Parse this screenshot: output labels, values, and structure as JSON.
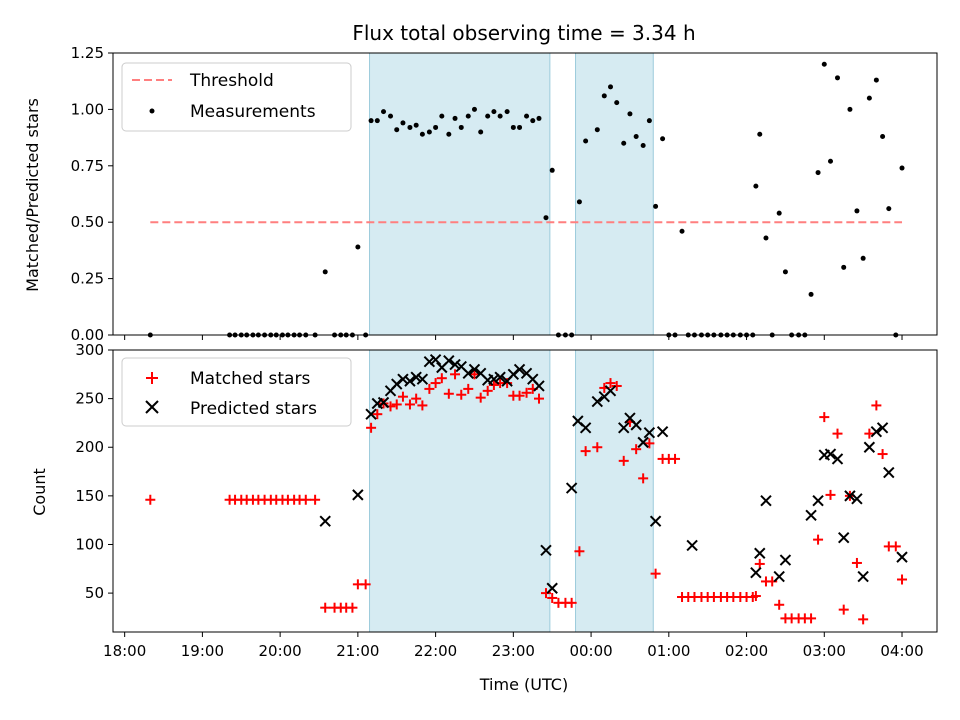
{
  "chart_data": [
    {
      "type": "scatter",
      "title": "Flux total observing time = 3.34 h",
      "xlabel": "",
      "ylabel": "Matched/Predicted stars",
      "ylim": [
        0,
        1.25
      ],
      "yticks": [
        "0.00",
        "0.25",
        "0.50",
        "0.75",
        "1.00",
        "1.25"
      ],
      "legend": "top-left",
      "shaded_regions": [
        [
          21.15,
          23.47
        ],
        [
          23.8,
          24.8
        ]
      ],
      "threshold": {
        "name": "Threshold",
        "value": 0.5,
        "x_range": [
          18.33,
          28.0
        ],
        "color": "#ff7f7f"
      },
      "measurements": {
        "name": "Measurements",
        "color": "#000000",
        "points": [
          [
            18.33,
            0
          ],
          [
            19.35,
            0
          ],
          [
            19.42,
            0
          ],
          [
            19.5,
            0
          ],
          [
            19.57,
            0
          ],
          [
            19.65,
            0
          ],
          [
            19.72,
            0
          ],
          [
            19.8,
            0
          ],
          [
            19.88,
            0
          ],
          [
            19.95,
            0
          ],
          [
            20.03,
            0
          ],
          [
            20.1,
            0
          ],
          [
            20.18,
            0
          ],
          [
            20.25,
            0
          ],
          [
            20.33,
            0
          ],
          [
            20.45,
            0
          ],
          [
            20.58,
            0.28
          ],
          [
            20.7,
            0
          ],
          [
            20.78,
            0
          ],
          [
            20.85,
            0
          ],
          [
            20.93,
            0
          ],
          [
            21.0,
            0.39
          ],
          [
            21.1,
            0
          ],
          [
            21.17,
            0.95
          ],
          [
            21.25,
            0.95
          ],
          [
            21.33,
            0.99
          ],
          [
            21.42,
            0.97
          ],
          [
            21.5,
            0.91
          ],
          [
            21.58,
            0.94
          ],
          [
            21.67,
            0.92
          ],
          [
            21.75,
            0.93
          ],
          [
            21.83,
            0.89
          ],
          [
            21.92,
            0.9
          ],
          [
            22.0,
            0.92
          ],
          [
            22.08,
            0.97
          ],
          [
            22.17,
            0.89
          ],
          [
            22.25,
            0.96
          ],
          [
            22.33,
            0.92
          ],
          [
            22.42,
            0.97
          ],
          [
            22.5,
            1.0
          ],
          [
            22.58,
            0.9
          ],
          [
            22.67,
            0.97
          ],
          [
            22.75,
            0.99
          ],
          [
            22.83,
            0.97
          ],
          [
            22.92,
            0.99
          ],
          [
            23.0,
            0.92
          ],
          [
            23.08,
            0.92
          ],
          [
            23.17,
            0.97
          ],
          [
            23.25,
            0.95
          ],
          [
            23.33,
            0.96
          ],
          [
            23.42,
            0.52
          ],
          [
            23.5,
            0.73
          ],
          [
            23.58,
            0
          ],
          [
            23.67,
            0
          ],
          [
            23.75,
            0
          ],
          [
            23.85,
            0.59
          ],
          [
            23.93,
            0.86
          ],
          [
            24.08,
            0.91
          ],
          [
            24.17,
            1.06
          ],
          [
            24.25,
            1.1
          ],
          [
            24.33,
            1.03
          ],
          [
            24.42,
            0.85
          ],
          [
            24.5,
            0.98
          ],
          [
            24.58,
            0.88
          ],
          [
            24.67,
            0.84
          ],
          [
            24.75,
            0.95
          ],
          [
            24.83,
            0.57
          ],
          [
            24.92,
            0.87
          ],
          [
            25.0,
            0
          ],
          [
            25.08,
            0
          ],
          [
            25.17,
            0.46
          ],
          [
            25.25,
            0
          ],
          [
            25.33,
            0
          ],
          [
            25.42,
            0
          ],
          [
            25.5,
            0
          ],
          [
            25.58,
            0
          ],
          [
            25.67,
            0
          ],
          [
            25.75,
            0
          ],
          [
            25.83,
            0
          ],
          [
            25.92,
            0
          ],
          [
            26.0,
            0
          ],
          [
            26.08,
            0
          ],
          [
            26.12,
            0.66
          ],
          [
            26.17,
            0.89
          ],
          [
            26.25,
            0.43
          ],
          [
            26.33,
            0
          ],
          [
            26.42,
            0.54
          ],
          [
            26.5,
            0.28
          ],
          [
            26.58,
            0
          ],
          [
            26.67,
            0
          ],
          [
            26.75,
            0
          ],
          [
            26.83,
            0.18
          ],
          [
            26.92,
            0.72
          ],
          [
            27.0,
            1.2
          ],
          [
            27.08,
            0.77
          ],
          [
            27.17,
            1.14
          ],
          [
            27.25,
            0.3
          ],
          [
            27.33,
            1.0
          ],
          [
            27.42,
            0.55
          ],
          [
            27.5,
            0.34
          ],
          [
            27.58,
            1.05
          ],
          [
            27.67,
            1.13
          ],
          [
            27.75,
            0.88
          ],
          [
            27.83,
            0.56
          ],
          [
            27.92,
            0
          ],
          [
            28.0,
            0.74
          ]
        ]
      }
    },
    {
      "type": "scatter",
      "title": "",
      "xlabel": "Time (UTC)",
      "ylabel": "Count",
      "ylim": [
        10,
        300
      ],
      "yticks": [
        "50",
        "100",
        "150",
        "200",
        "250",
        "300"
      ],
      "xticks": [
        "18:00",
        "19:00",
        "20:00",
        "21:00",
        "22:00",
        "23:00",
        "00:00",
        "01:00",
        "02:00",
        "03:00",
        "04:00"
      ],
      "legend": "top-left",
      "shaded_regions": [
        [
          21.15,
          23.47
        ],
        [
          23.8,
          24.8
        ]
      ],
      "series": [
        {
          "name": "Matched stars",
          "marker": "plus",
          "color": "#ff0000",
          "points": [
            [
              18.33,
              146
            ],
            [
              19.35,
              146
            ],
            [
              19.42,
              146
            ],
            [
              19.5,
              146
            ],
            [
              19.57,
              146
            ],
            [
              19.65,
              146
            ],
            [
              19.72,
              146
            ],
            [
              19.8,
              146
            ],
            [
              19.88,
              146
            ],
            [
              19.95,
              146
            ],
            [
              20.03,
              146
            ],
            [
              20.1,
              146
            ],
            [
              20.18,
              146
            ],
            [
              20.25,
              146
            ],
            [
              20.33,
              146
            ],
            [
              20.45,
              146
            ],
            [
              20.58,
              35
            ],
            [
              20.7,
              35
            ],
            [
              20.78,
              35
            ],
            [
              20.85,
              35
            ],
            [
              20.93,
              35
            ],
            [
              21.0,
              59
            ],
            [
              21.1,
              59
            ],
            [
              21.17,
              220
            ],
            [
              21.25,
              234
            ],
            [
              21.33,
              245
            ],
            [
              21.42,
              242
            ],
            [
              21.5,
              244
            ],
            [
              21.58,
              252
            ],
            [
              21.67,
              244
            ],
            [
              21.75,
              250
            ],
            [
              21.83,
              243
            ],
            [
              21.92,
              260
            ],
            [
              22.0,
              266
            ],
            [
              22.08,
              271
            ],
            [
              22.17,
              255
            ],
            [
              22.25,
              275
            ],
            [
              22.33,
              254
            ],
            [
              22.42,
              260
            ],
            [
              22.5,
              275
            ],
            [
              22.58,
              251
            ],
            [
              22.67,
              258
            ],
            [
              22.75,
              264
            ],
            [
              22.83,
              266
            ],
            [
              22.92,
              266
            ],
            [
              23.0,
              253
            ],
            [
              23.08,
              253
            ],
            [
              23.17,
              256
            ],
            [
              23.25,
              260
            ],
            [
              23.33,
              250
            ],
            [
              23.42,
              50
            ],
            [
              23.5,
              45
            ],
            [
              23.58,
              40
            ],
            [
              23.67,
              40
            ],
            [
              23.75,
              40
            ],
            [
              23.85,
              93
            ],
            [
              23.93,
              196
            ],
            [
              24.08,
              200
            ],
            [
              24.17,
              261
            ],
            [
              24.25,
              266
            ],
            [
              24.33,
              263
            ],
            [
              24.42,
              186
            ],
            [
              24.5,
              226
            ],
            [
              24.58,
              198
            ],
            [
              24.67,
              168
            ],
            [
              24.75,
              204
            ],
            [
              24.83,
              70
            ],
            [
              24.92,
              188
            ],
            [
              25.0,
              188
            ],
            [
              25.08,
              188
            ],
            [
              25.17,
              46
            ],
            [
              25.25,
              46
            ],
            [
              25.33,
              46
            ],
            [
              25.42,
              46
            ],
            [
              25.5,
              46
            ],
            [
              25.58,
              46
            ],
            [
              25.67,
              46
            ],
            [
              25.75,
              46
            ],
            [
              25.83,
              46
            ],
            [
              25.92,
              46
            ],
            [
              26.0,
              46
            ],
            [
              26.08,
              46
            ],
            [
              26.12,
              47
            ],
            [
              26.17,
              80
            ],
            [
              26.25,
              62
            ],
            [
              26.33,
              62
            ],
            [
              26.42,
              38
            ],
            [
              26.5,
              24
            ],
            [
              26.58,
              24
            ],
            [
              26.67,
              24
            ],
            [
              26.75,
              24
            ],
            [
              26.83,
              24
            ],
            [
              26.92,
              105
            ],
            [
              27.0,
              231
            ],
            [
              27.08,
              151
            ],
            [
              27.17,
              214
            ],
            [
              27.25,
              33
            ],
            [
              27.33,
              150
            ],
            [
              27.42,
              81
            ],
            [
              27.5,
              23
            ],
            [
              27.58,
              214
            ],
            [
              27.67,
              243
            ],
            [
              27.75,
              193
            ],
            [
              27.83,
              98
            ],
            [
              27.92,
              98
            ],
            [
              28.0,
              64
            ]
          ]
        },
        {
          "name": "Predicted stars",
          "marker": "x",
          "color": "#000000",
          "points": [
            [
              20.58,
              124
            ],
            [
              21.0,
              151
            ],
            [
              21.17,
              234
            ],
            [
              21.25,
              245
            ],
            [
              21.33,
              246
            ],
            [
              21.42,
              258
            ],
            [
              21.5,
              265
            ],
            [
              21.58,
              270
            ],
            [
              21.67,
              268
            ],
            [
              21.75,
              272
            ],
            [
              21.83,
              270
            ],
            [
              21.92,
              288
            ],
            [
              22.0,
              290
            ],
            [
              22.08,
              282
            ],
            [
              22.17,
              289
            ],
            [
              22.25,
              285
            ],
            [
              22.33,
              283
            ],
            [
              22.42,
              276
            ],
            [
              22.5,
              280
            ],
            [
              22.58,
              276
            ],
            [
              22.67,
              269
            ],
            [
              22.75,
              270
            ],
            [
              22.83,
              272
            ],
            [
              22.92,
              268
            ],
            [
              23.0,
              275
            ],
            [
              23.08,
              280
            ],
            [
              23.17,
              276
            ],
            [
              23.25,
              270
            ],
            [
              23.33,
              263
            ],
            [
              23.42,
              94
            ],
            [
              23.5,
              55
            ],
            [
              23.75,
              158
            ],
            [
              23.83,
              227
            ],
            [
              23.93,
              220
            ],
            [
              24.08,
              247
            ],
            [
              24.17,
              252
            ],
            [
              24.25,
              258
            ],
            [
              24.42,
              220
            ],
            [
              24.5,
              230
            ],
            [
              24.58,
              223
            ],
            [
              24.67,
              205
            ],
            [
              24.75,
              215
            ],
            [
              24.83,
              124
            ],
            [
              24.92,
              216
            ],
            [
              25.3,
              99
            ],
            [
              26.12,
              71
            ],
            [
              26.17,
              91
            ],
            [
              26.25,
              145
            ],
            [
              26.42,
              67
            ],
            [
              26.5,
              84
            ],
            [
              26.83,
              130
            ],
            [
              26.92,
              145
            ],
            [
              27.0,
              192
            ],
            [
              27.08,
              193
            ],
            [
              27.17,
              188
            ],
            [
              27.25,
              107
            ],
            [
              27.33,
              150
            ],
            [
              27.42,
              147
            ],
            [
              27.5,
              67
            ],
            [
              27.58,
              200
            ],
            [
              27.67,
              216
            ],
            [
              27.75,
              220
            ],
            [
              27.83,
              174
            ],
            [
              28.0,
              87
            ]
          ]
        }
      ]
    }
  ]
}
